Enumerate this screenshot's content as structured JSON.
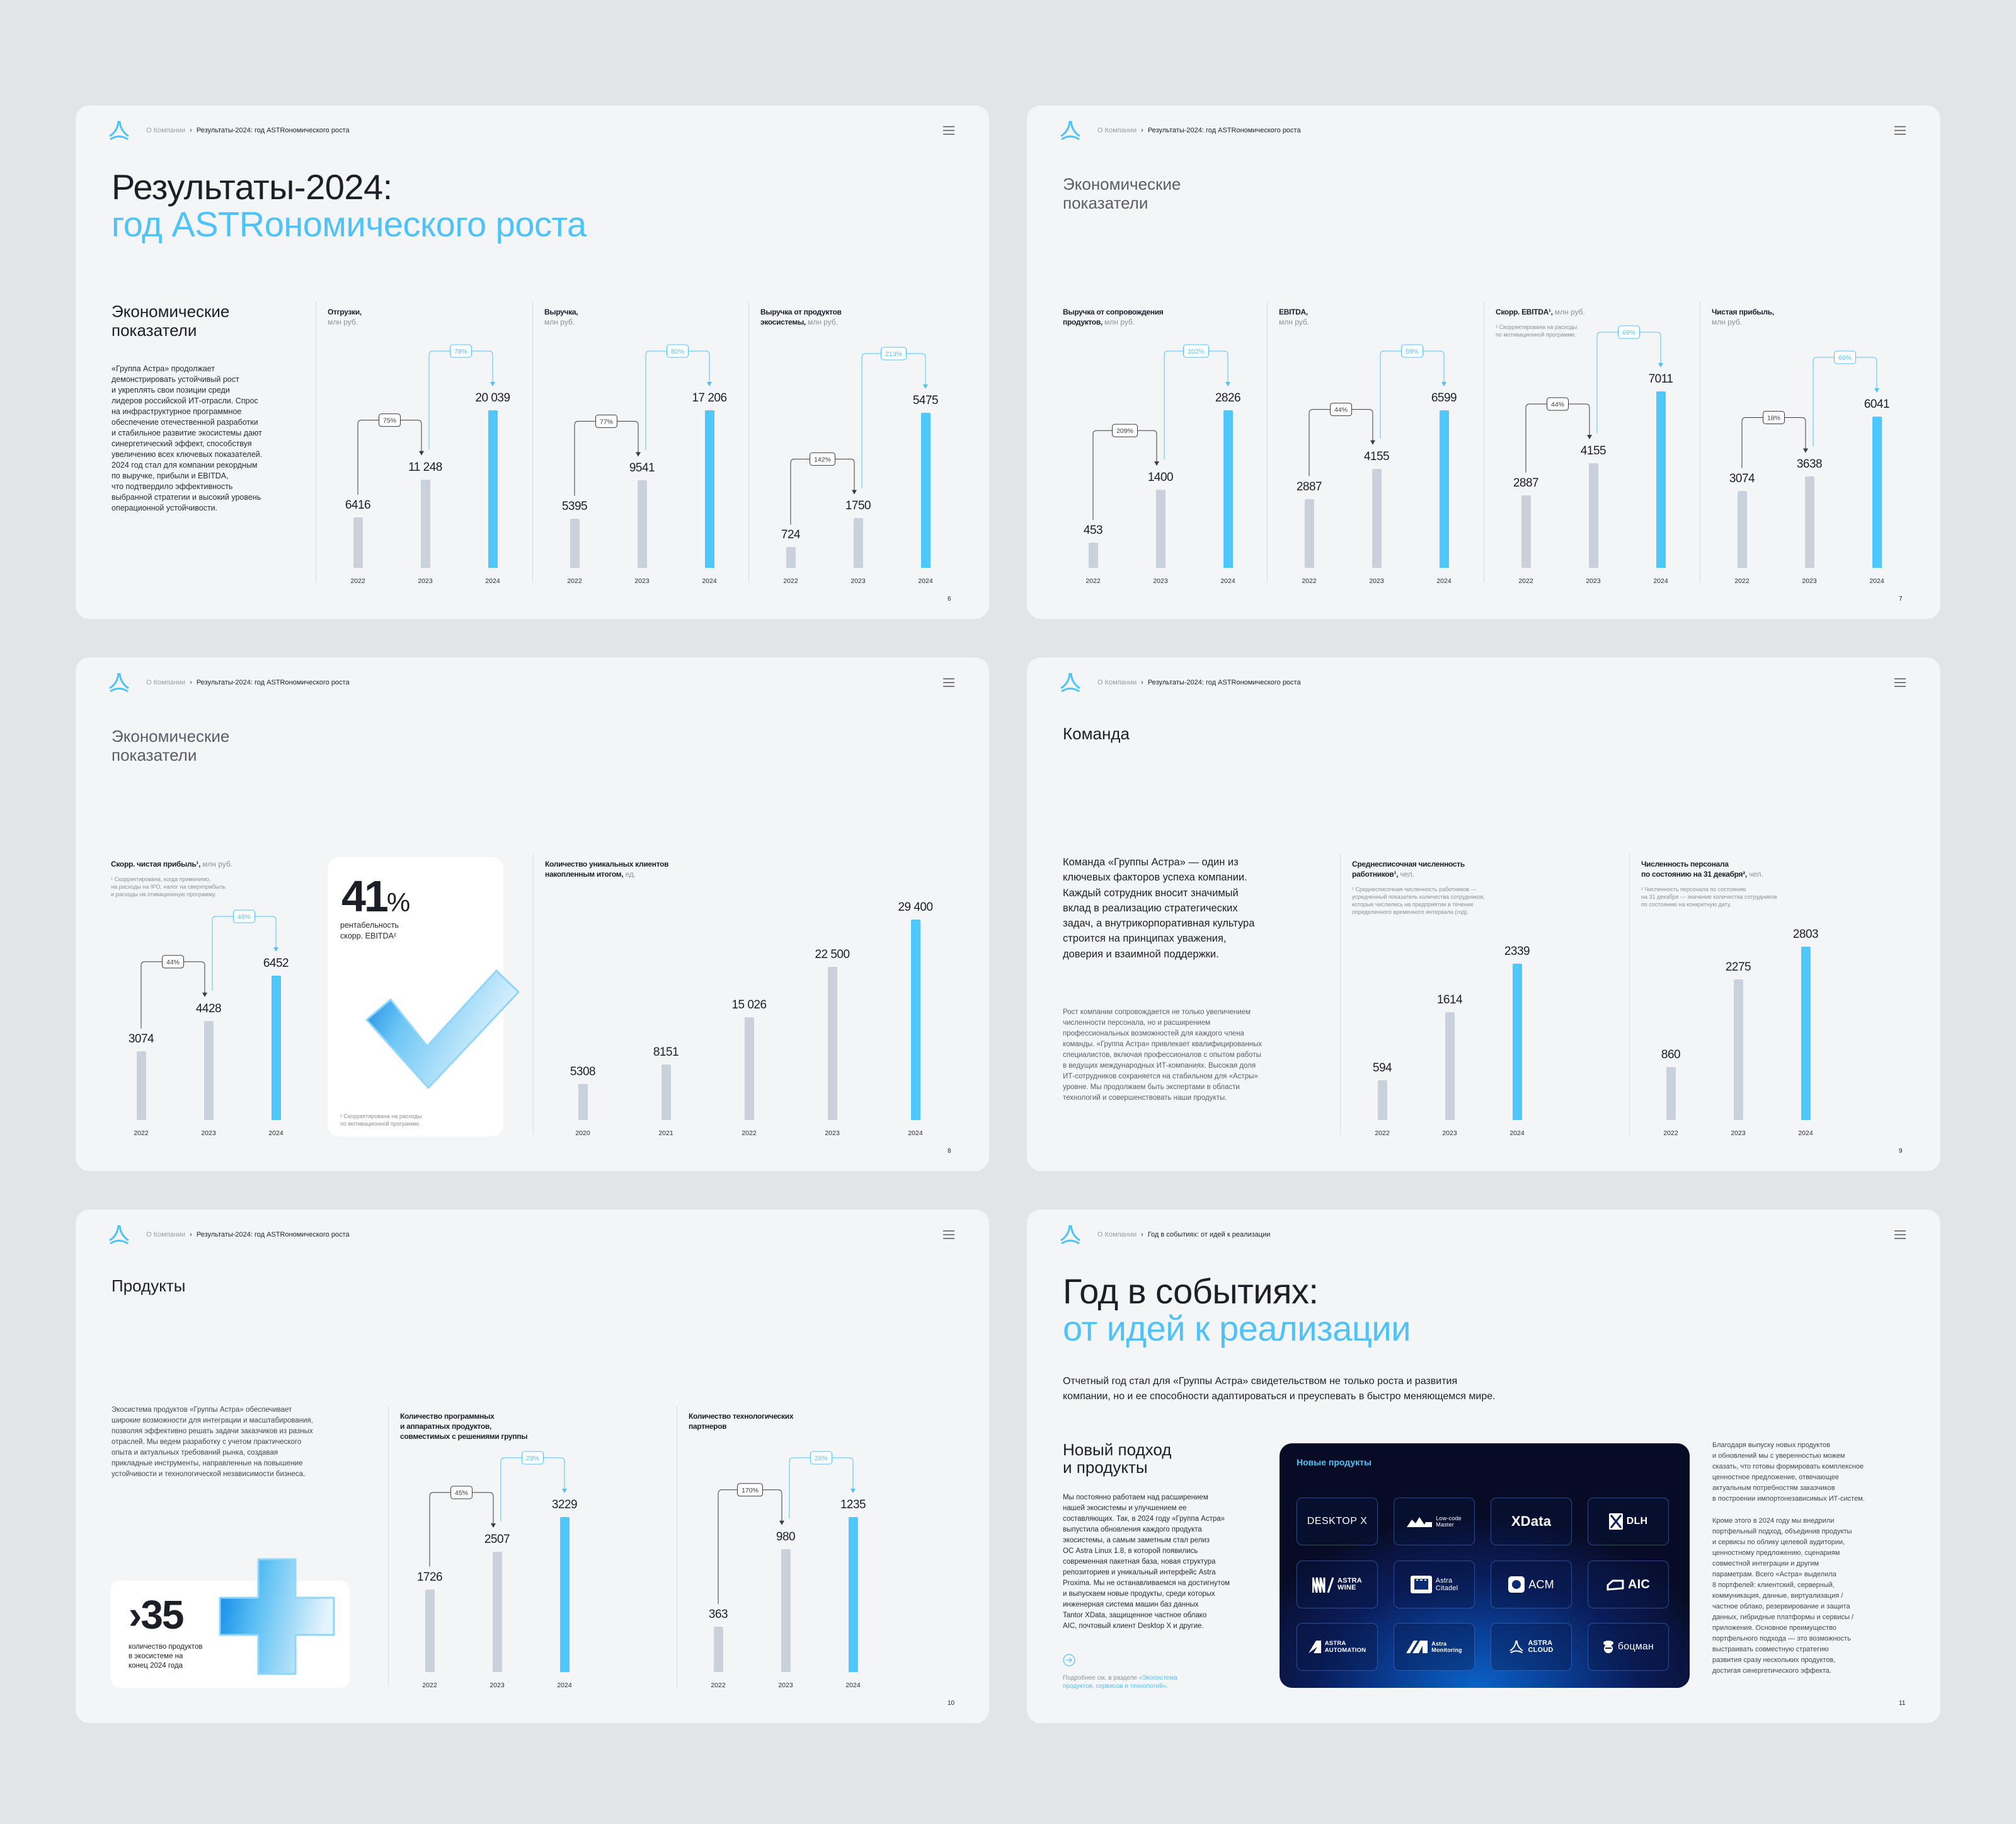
{
  "colors": {
    "accent": "#4fc3f7",
    "bar_current": "#4fc7fc",
    "bar_past": "#cbd1da",
    "dark_text": "#1d1f27"
  },
  "breadcrumb_root": "О Компании",
  "slides": [
    {
      "breadcrumb_current": "Результаты-2024: год ASTRономического роста",
      "title_line1": "Результаты-2024:",
      "title_line2": "год ASTRономического роста",
      "section_title": "Экономические\nпоказатели",
      "paragraph": "«Группа Астра» продолжает\nдемонстрировать устойчивый рост\nи укреплять свои позиции среди\nлидеров российской ИТ-отрасли. Спрос\nна инфраструктурное программное\nобеспечение отечественной разработки\nи стабильное развитие экосистемы дают\nсинергетический эффект, способствуя\nувеличению всех ключевых показателей.\n2024 год стал для компании рекордным\nпо выручке, прибыли и EBITDA,\nчто подтвердило эффективность\nвыбранной стратегии и высокий уровень\nоперационной устойчивости.",
      "page": "6"
    },
    {
      "breadcrumb_current": "Результаты-2024: год ASTRономического роста",
      "section_title": "Экономические\nпоказатели",
      "page": "7"
    },
    {
      "breadcrumb_current": "Результаты-2024: год ASTRономического роста",
      "section_title": "Экономические\nпоказатели",
      "card_value": "41",
      "card_unit": "%",
      "card_caption": "рентабельность\nскорр. EBITDA²",
      "card_footnote": "² Скорректирована на расходы\nпо мотивационной программе.",
      "page": "8"
    },
    {
      "breadcrumb_current": "Результаты-2024: год ASTRономического роста",
      "section_title": "Команда",
      "lead": "Команда «Группы Астра» — один из\nключевых факторов успеха компании.\nКаждый сотрудник вносит значимый\nвклад в реализацию стратегических\nзадач, а внутрикорпоративная культура\nстроится на принципах уважения,\nдоверия и взаимной поддержки.",
      "body": "Рост компании сопровождается не только увеличением\nчисленности персонала, но и расширением\nпрофессиональных возможностей для каждого члена\nкоманды. «Группа Астра» привлекает квалифицированных\nспециалистов, включая профессионалов с опытом работы\nв ведущих международных ИТ-компаниях. Высокая доля\nИТ-сотрудников сохраняется на стабильном для «Астры»\nуровне. Мы продолжаем быть экспертами в области\nтехнологий и совершенствовать наши продукты.",
      "page": "9"
    },
    {
      "breadcrumb_current": "Результаты-2024: год ASTRономического роста",
      "section_title": "Продукты",
      "body": "Экосистема продуктов «Группы Астра» обеспечивает\nширокие возможности для интеграции и масштабирования,\nпозволяя эффективно решать задачи заказчиков из разных\nотраслей. Мы ведем разработку с учетом практического\nопыта и актуальных требований рынка, создавая\nприкладные инструменты, направленные на повышение\nустойчивости и технологической независимости бизнеса.",
      "stat_value": "›35",
      "stat_caption": "количество продуктов\nв экосистеме на\nконец 2024 года",
      "page": "10"
    },
    {
      "breadcrumb_current": "Год в событиях: от идей к реализации",
      "title_line1": "Год в событиях:",
      "title_line2": "от идей к реализации",
      "lead": "Отчетный год стал для «Группы Астра» свидетельством не только роста и развития\nкомпании, но и ее способности адаптироваться и преуспевать в быстро меняющемся мире.",
      "section_title": "Новый подход\nи продукты",
      "body": "Мы постоянно работаем над расширением\nнашей экосистемы и улучшением ее\nсоставляющих. Так, в 2024 году «Группа Астра»\nвыпустила обновления каждого продукта\nэкосистемы, а самым заметным стал релиз\nОС Astra Linux 1.8, в которой появились\nсовременная пакетная база, новая структура\nрепозиториев и уникальный интерфейс Astra\nProxima. Мы не останавливаемся на достигнутом\nи выпускаем новые продукты, среди которых\nинженерная система машин баз данных\nTantor XData, защищенное частное облако\nAIC, почтовый клиент Desktop X и другие.",
      "link_prefix": "Подробнее см. в разделе ",
      "link_text": "«Экосистема\nпродуктов, сервисов и технологий»",
      "link_suffix": ".",
      "card_title": "Новые продукты",
      "products": [
        {
          "name": "DESKTOP X"
        },
        {
          "name": "Low-code\nMaster"
        },
        {
          "name": "XData"
        },
        {
          "name": "DLH"
        },
        {
          "name": "ASTRA\nWINE"
        },
        {
          "name": "Astra\nCitadel"
        },
        {
          "name": "ACM"
        },
        {
          "name": "AIC"
        },
        {
          "name": "ASTRA\nAUTOMATION"
        },
        {
          "name": "Astra\nMonitoring"
        },
        {
          "name": "ASTRA\nCLOUD"
        },
        {
          "name": "боцман"
        }
      ],
      "right_p1": "Благодаря выпуску новых продуктов\nи обновлений мы с уверенностью можем\nсказать, что готовы формировать комплексное\nценностное предложение, отвечающее\nактуальным потребностям заказчиков\nв построении импортонезависимых ИТ-систем.",
      "right_p2": "Кроме этого в 2024 году мы внедрили\nпортфельный подход, объединив продукты\nи сервисы по облику целевой аудитории,\nценностному предложению, сценариям\nсовместной интеграции и другим\nпараметрам. Всего «Астра» выделила\n8 портфелей: клиентский, серверный,\nкоммуникация, данные, виртуализация /\nчастное облако, резервирование и защита\nданных, гибридные платформы и сервисы /\nприложения. Основное преимущество\nпортфельного подхода — это возможность\nвыстраивать совместную стратегию\nразвития сразу нескольких продуктов,\nдостигая синергетического эффекта.",
      "page": "11"
    }
  ],
  "chart_data": [
    {
      "type": "bar",
      "title": "Отгрузки,\n",
      "unit": "млн руб.",
      "categories": [
        "2022",
        "2023",
        "2024"
      ],
      "values": [
        6416,
        11248,
        20039
      ],
      "value_labels": [
        "6416",
        "11 248",
        "20 039"
      ],
      "growth": [
        {
          "label": "75%",
          "from": 0,
          "to": 1,
          "style": "dark"
        },
        {
          "label": "78%",
          "from": 1,
          "to": 2,
          "style": "blue"
        }
      ]
    },
    {
      "type": "bar",
      "title": "Выручка,\n",
      "unit": "млн руб.",
      "categories": [
        "2022",
        "2023",
        "2024"
      ],
      "values": [
        5395,
        9541,
        17206
      ],
      "value_labels": [
        "5395",
        "9541",
        "17 206"
      ],
      "growth": [
        {
          "label": "77%",
          "from": 0,
          "to": 1,
          "style": "dark"
        },
        {
          "label": "80%",
          "from": 1,
          "to": 2,
          "style": "blue"
        }
      ]
    },
    {
      "type": "bar",
      "title": "Выручка от продуктов\nэкосистемы, ",
      "unit": "млн руб.",
      "categories": [
        "2022",
        "2023",
        "2024"
      ],
      "values": [
        724,
        1750,
        5475
      ],
      "value_labels": [
        "724",
        "1750",
        "5475"
      ],
      "growth": [
        {
          "label": "142%",
          "from": 0,
          "to": 1,
          "style": "dark"
        },
        {
          "label": "213%",
          "from": 1,
          "to": 2,
          "style": "blue"
        }
      ]
    },
    {
      "type": "bar",
      "title": "Выручка от сопровождения\nпродуктов, ",
      "unit": "млн руб.",
      "categories": [
        "2022",
        "2023",
        "2024"
      ],
      "values": [
        453,
        1400,
        2826
      ],
      "value_labels": [
        "453",
        "1400",
        "2826"
      ],
      "growth": [
        {
          "label": "209%",
          "from": 0,
          "to": 1,
          "style": "dark"
        },
        {
          "label": "102%",
          "from": 1,
          "to": 2,
          "style": "blue"
        }
      ]
    },
    {
      "type": "bar",
      "title": "EBITDA,\n",
      "unit": "млн руб.",
      "categories": [
        "2022",
        "2023",
        "2024"
      ],
      "values": [
        2887,
        4155,
        6599
      ],
      "value_labels": [
        "2887",
        "4155",
        "6599"
      ],
      "growth": [
        {
          "label": "44%",
          "from": 0,
          "to": 1,
          "style": "dark"
        },
        {
          "label": "59%",
          "from": 1,
          "to": 2,
          "style": "blue"
        }
      ]
    },
    {
      "type": "bar",
      "title": "Скорр. EBITDA¹, ",
      "unit": "млн руб.",
      "footnote": "¹ Скорректирована на расходы\n  по мотивационной программе.",
      "categories": [
        "2022",
        "2023",
        "2024"
      ],
      "values": [
        2887,
        4155,
        7011
      ],
      "value_labels": [
        "2887",
        "4155",
        "7011"
      ],
      "growth": [
        {
          "label": "44%",
          "from": 0,
          "to": 1,
          "style": "dark"
        },
        {
          "label": "69%",
          "from": 1,
          "to": 2,
          "style": "blue"
        }
      ]
    },
    {
      "type": "bar",
      "title": "Чистая прибыль,\n",
      "unit": "млн руб.",
      "categories": [
        "2022",
        "2023",
        "2024"
      ],
      "values": [
        3074,
        3638,
        6041
      ],
      "value_labels": [
        "3074",
        "3638",
        "6041"
      ],
      "growth": [
        {
          "label": "18%",
          "from": 0,
          "to": 1,
          "style": "dark"
        },
        {
          "label": "66%",
          "from": 1,
          "to": 2,
          "style": "blue"
        }
      ]
    },
    {
      "type": "bar",
      "title": "Скорр. чистая прибыль¹, ",
      "unit": "млн руб.",
      "footnote": "¹ Скорректирована, когда применимо,\n  на расходы на IPO, налог на сверхприбыль\n  и расходы на отивационную программу.",
      "categories": [
        "2022",
        "2023",
        "2024"
      ],
      "values": [
        3074,
        4428,
        6452
      ],
      "value_labels": [
        "3074",
        "4428",
        "6452"
      ],
      "growth": [
        {
          "label": "44%",
          "from": 0,
          "to": 1,
          "style": "dark"
        },
        {
          "label": "46%",
          "from": 1,
          "to": 2,
          "style": "blue"
        }
      ]
    },
    {
      "type": "bar",
      "title": "Количество уникальных клиентов\nнакопленным итогом, ",
      "unit": "ед.",
      "categories": [
        "2020",
        "2021",
        "2022",
        "2023",
        "2024"
      ],
      "values": [
        5308,
        8151,
        15026,
        22500,
        29400
      ],
      "value_labels": [
        "5308",
        "8151",
        "15 026",
        "22 500",
        "29 400"
      ],
      "growth": []
    },
    {
      "type": "bar",
      "title": "Среднесписочная численность\nработников¹, ",
      "unit": "чел.",
      "footnote": "¹ Среднесписочная численность работников —\n  усредненный показатель количества сотрудников,\n  которые числились на предприятии в течение\n  определенного временного интервала (год).",
      "categories": [
        "2022",
        "2023",
        "2024"
      ],
      "values": [
        594,
        1614,
        2339
      ],
      "value_labels": [
        "594",
        "1614",
        "2339"
      ],
      "growth": []
    },
    {
      "type": "bar",
      "title": "Численность персонала\nпо состоянию на 31 декабря², ",
      "unit": "чел.",
      "footnote": "² Численность персонала по состоянию\n  на 31 декабря — значение количества сотрудников\n  по состоянию на конкретную дату.",
      "categories": [
        "2022",
        "2023",
        "2024"
      ],
      "values": [
        860,
        2275,
        2803
      ],
      "value_labels": [
        "860",
        "2275",
        "2803"
      ],
      "growth": []
    },
    {
      "type": "bar",
      "title": "Количество программных\nи аппаратных продуктов,\nсовместимых с решениями группы",
      "unit": "",
      "categories": [
        "2022",
        "2023",
        "2024"
      ],
      "values": [
        1726,
        2507,
        3229
      ],
      "value_labels": [
        "1726",
        "2507",
        "3229"
      ],
      "growth": [
        {
          "label": "45%",
          "from": 0,
          "to": 1,
          "style": "dark"
        },
        {
          "label": "29%",
          "from": 1,
          "to": 2,
          "style": "blue"
        }
      ]
    },
    {
      "type": "bar",
      "title": "Количество технологических\nпартнеров",
      "unit": "",
      "categories": [
        "2022",
        "2023",
        "2024"
      ],
      "values": [
        363,
        980,
        1235
      ],
      "value_labels": [
        "363",
        "980",
        "1235"
      ],
      "growth": [
        {
          "label": "170%",
          "from": 0,
          "to": 1,
          "style": "dark"
        },
        {
          "label": "26%",
          "from": 1,
          "to": 2,
          "style": "blue"
        }
      ]
    }
  ]
}
